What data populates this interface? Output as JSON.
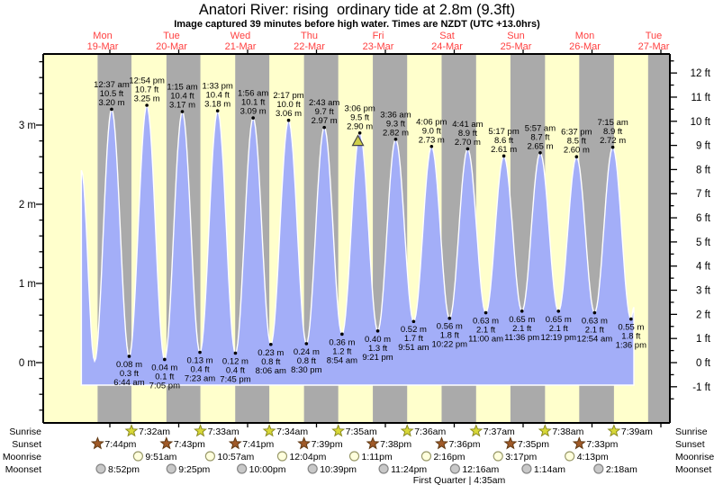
{
  "title": "Anatori River: rising  ordinary tide at 2.8m (9.3ft)",
  "subtitle": "Image captured 39 minutes before high water. Times are NZDT (UTC +13.0hrs)",
  "colors": {
    "day_bg": "#ffffcc",
    "night_bg": "#aaaaaa",
    "tide_fill": "#a3aef8",
    "curve_outline": "#ffffff",
    "date_label": "#ff4040",
    "axis": "#000000",
    "sunrise_star": "#d8d837",
    "sunrise_star_edge": "#8a8a20",
    "sunset_star": "#a05a28",
    "sunset_star_edge": "#5f3812",
    "moonrise_circle": "#ffffdd",
    "moonrise_circle_edge": "#99996a",
    "moonset_circle": "#c8c8c8",
    "moonset_circle_edge": "#858585",
    "current_marker": "#cfcf4a",
    "current_marker_edge": "#444444"
  },
  "days": [
    {
      "name": "Mon",
      "date": "19-Mar"
    },
    {
      "name": "Tue",
      "date": "20-Mar"
    },
    {
      "name": "Wed",
      "date": "21-Mar"
    },
    {
      "name": "Thu",
      "date": "22-Mar"
    },
    {
      "name": "Fri",
      "date": "23-Mar"
    },
    {
      "name": "Sat",
      "date": "24-Mar"
    },
    {
      "name": "Sun",
      "date": "25-Mar"
    },
    {
      "name": "Mon",
      "date": "26-Mar"
    },
    {
      "name": "Tue",
      "date": "27-Mar"
    }
  ],
  "axes": {
    "left_unit": "m",
    "left_labels": [
      "0 m",
      "1 m",
      "2 m",
      "3 m"
    ],
    "right_unit": "ft",
    "right_labels": [
      "-1 ft",
      "0 ft",
      "1 ft",
      "2 ft",
      "3 ft",
      "4 ft",
      "5 ft",
      "6 ft",
      "7 ft",
      "8 ft",
      "9 ft",
      "10 ft",
      "11 ft",
      "12 ft"
    ]
  },
  "chart_data": {
    "type": "area",
    "title": "Anatori River: rising  ordinary tide at 2.8m (9.3ft)",
    "x_axis_days": [
      "Mon 19-Mar",
      "Tue 20-Mar",
      "Wed 21-Mar",
      "Thu 22-Mar",
      "Fri 23-Mar",
      "Sat 24-Mar",
      "Sun 25-Mar",
      "Mon 26-Mar",
      "Tue 27-Mar"
    ],
    "y_axis": {
      "left_ticks_m": [
        0,
        1,
        2,
        3
      ],
      "right_ticks_ft_range": [
        -1,
        12
      ],
      "minor_step_m": 0.2,
      "minor_step_ft": 0.5
    },
    "tide_events": [
      {
        "day": 0,
        "type": "high",
        "time": "12:37 am",
        "ft": "10.5 ft",
        "m": "3.20 m"
      },
      {
        "day": 0,
        "type": "low",
        "time": "6:44 am",
        "ft": "0.3 ft",
        "m": "0.08 m"
      },
      {
        "day": 0,
        "type": "high",
        "time": "12:54 pm",
        "ft": "10.7 ft",
        "m": "3.25 m"
      },
      {
        "day": 0,
        "type": "low",
        "time": "7:05 pm",
        "ft": "0.1 ft",
        "m": "0.04 m"
      },
      {
        "day": 1,
        "type": "high",
        "time": "1:15 am",
        "ft": "10.4 ft",
        "m": "3.17 m"
      },
      {
        "day": 1,
        "type": "low",
        "time": "7:23 am",
        "ft": "0.4 ft",
        "m": "0.13 m"
      },
      {
        "day": 1,
        "type": "high",
        "time": "1:33 pm",
        "ft": "10.4 ft",
        "m": "3.18 m"
      },
      {
        "day": 1,
        "type": "low",
        "time": "7:45 pm",
        "ft": "0.4 ft",
        "m": "0.12 m"
      },
      {
        "day": 2,
        "type": "high",
        "time": "1:56 am",
        "ft": "10.1 ft",
        "m": "3.09 m"
      },
      {
        "day": 2,
        "type": "low",
        "time": "8:06 am",
        "ft": "0.8 ft",
        "m": "0.23 m"
      },
      {
        "day": 2,
        "type": "high",
        "time": "2:17 pm",
        "ft": "10.0 ft",
        "m": "3.06 m"
      },
      {
        "day": 2,
        "type": "low",
        "time": "8:30 pm",
        "ft": "0.8 ft",
        "m": "0.24 m"
      },
      {
        "day": 3,
        "type": "high",
        "time": "2:43 am",
        "ft": "9.7 ft",
        "m": "2.97 m"
      },
      {
        "day": 3,
        "type": "low",
        "time": "8:54 am",
        "ft": "1.2 ft",
        "m": "0.36 m"
      },
      {
        "day": 3,
        "type": "high",
        "time": "3:06 pm",
        "ft": "9.5 ft",
        "m": "2.90 m"
      },
      {
        "day": 3,
        "type": "low",
        "time": "9:21 pm",
        "ft": "1.3 ft",
        "m": "0.40 m"
      },
      {
        "day": 4,
        "type": "high",
        "time": "3:36 am",
        "ft": "9.3 ft",
        "m": "2.82 m"
      },
      {
        "day": 4,
        "type": "low",
        "time": "9:51 am",
        "ft": "1.7 ft",
        "m": "0.52 m"
      },
      {
        "day": 4,
        "type": "high",
        "time": "4:06 pm",
        "ft": "9.0 ft",
        "m": "2.73 m"
      },
      {
        "day": 4,
        "type": "low",
        "time": "10:22 pm",
        "ft": "1.8 ft",
        "m": "0.56 m"
      },
      {
        "day": 5,
        "type": "high",
        "time": "4:41 am",
        "ft": "8.9 ft",
        "m": "2.70 m"
      },
      {
        "day": 5,
        "type": "low",
        "time": "11:00 am",
        "ft": "2.1 ft",
        "m": "0.63 m"
      },
      {
        "day": 5,
        "type": "high",
        "time": "5:17 pm",
        "ft": "8.6 ft",
        "m": "2.61 m"
      },
      {
        "day": 5,
        "type": "low",
        "time": "11:36 pm",
        "ft": "2.1 ft",
        "m": "0.65 m"
      },
      {
        "day": 6,
        "type": "high",
        "time": "5:57 am",
        "ft": "8.7 ft",
        "m": "2.65 m"
      },
      {
        "day": 6,
        "type": "low",
        "time": "12:19 pm",
        "ft": "2.1 ft",
        "m": "0.65 m"
      },
      {
        "day": 6,
        "type": "high",
        "time": "6:37 pm",
        "ft": "8.5 ft",
        "m": "2.60 m"
      },
      {
        "day": 7,
        "type": "low",
        "time": "12:54 am",
        "ft": "2.1 ft",
        "m": "0.63 m"
      },
      {
        "day": 7,
        "type": "high",
        "time": "7:15 am",
        "ft": "8.9 ft",
        "m": "2.72 m"
      },
      {
        "day": 7,
        "type": "low",
        "time": "1:36 pm",
        "ft": "1.8 ft",
        "m": "0.55 m"
      }
    ],
    "series_trim": {
      "lead_in_high": {
        "day": -1,
        "hour": 14.1,
        "m": 2.43
      },
      "lead_in_low": {
        "day": -1,
        "hour": 18.7,
        "m": 0.02
      },
      "series_end": {
        "day": 7,
        "hour": 14.6,
        "m": 0.7
      }
    }
  },
  "current_tide": {
    "height_m_label": "2.8m",
    "height_ft_label": "9.3ft",
    "minutes_before_high": 39,
    "day": 3,
    "high_time": "3:06 pm",
    "marker_level_m": 2.8
  },
  "almanac": {
    "rows": [
      {
        "name": "Sunrise",
        "icon": "sunrise-star",
        "events": [
          {
            "day": 0,
            "time": "7:32am"
          },
          {
            "day": 1,
            "time": "7:33am"
          },
          {
            "day": 2,
            "time": "7:34am"
          },
          {
            "day": 3,
            "time": "7:35am"
          },
          {
            "day": 4,
            "time": "7:36am"
          },
          {
            "day": 5,
            "time": "7:37am"
          },
          {
            "day": 6,
            "time": "7:38am"
          },
          {
            "day": 7,
            "time": "7:39am"
          }
        ]
      },
      {
        "name": "Sunset",
        "icon": "sunset-star",
        "events": [
          {
            "day": -1,
            "time": "7:44pm"
          },
          {
            "day": 0,
            "time": "7:43pm"
          },
          {
            "day": 1,
            "time": "7:41pm"
          },
          {
            "day": 2,
            "time": "7:39pm"
          },
          {
            "day": 3,
            "time": "7:38pm"
          },
          {
            "day": 4,
            "time": "7:36pm"
          },
          {
            "day": 5,
            "time": "7:35pm"
          },
          {
            "day": 6,
            "time": "7:33pm"
          }
        ]
      },
      {
        "name": "Moonrise",
        "icon": "moonrise-circle",
        "events": [
          {
            "day": 0,
            "time": "9:51am"
          },
          {
            "day": 1,
            "time": "10:57am"
          },
          {
            "day": 2,
            "time": "12:04pm"
          },
          {
            "day": 3,
            "time": "1:11pm"
          },
          {
            "day": 4,
            "time": "2:16pm"
          },
          {
            "day": 5,
            "time": "3:17pm"
          },
          {
            "day": 6,
            "time": "4:13pm"
          }
        ]
      },
      {
        "name": "Moonset",
        "icon": "moonset-circle",
        "events": [
          {
            "day": -1,
            "time": "8:52pm"
          },
          {
            "day": 0,
            "time": "9:25pm"
          },
          {
            "day": 1,
            "time": "10:00pm"
          },
          {
            "day": 2,
            "time": "10:39pm"
          },
          {
            "day": 3,
            "time": "11:24pm"
          },
          {
            "day": 5,
            "time": "12:16am"
          },
          {
            "day": 6,
            "time": "1:14am"
          },
          {
            "day": 7,
            "time": "2:18am"
          }
        ]
      }
    ],
    "moon_phase": "First Quarter | 4:35am"
  }
}
